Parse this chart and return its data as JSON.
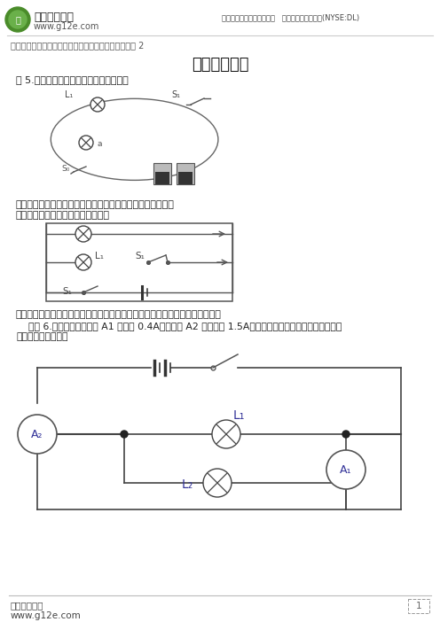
{
  "title": "经典例题精讲",
  "header_logo_text": "中小学教育网",
  "header_url": "www.g12e.com",
  "header_right": "正保远程教育旗下品牌网站   美国纽交所上市公司(NYSE:DL)",
  "subtitle": "初二强化提高班《物理》上学期辅导第三章第二节讲义 2",
  "example5_text": "例 5.实物图如图所示，画出它的电路图。",
  "analysis_text1": "「思路分析」首先是看懂电路图，可以用表电流法进行判断。",
  "analysis_text2": "「解答过程」画出的电路图如下示。",
  "skill_text1": "「技巧总结」关键是看懂电路，然后一一对应转化为电路图，注意画图要规范。",
  "example6_line1": "    例题 6.如图所示，电流表 A1 示数为 0.4A，电流表 A2 的示数为 1.5A，根据电路图，用笔画线作导线把右",
  "example6_line2": "边的实物连接起来。",
  "footer_text1": "中小学教育网",
  "footer_text2": "www.g12e.com",
  "bg_color": "#ffffff",
  "text_color": "#000000",
  "header_line_color": "#cccccc",
  "label_L1": "L₁",
  "label_L2": "L₂",
  "label_S1": "S₁",
  "label_Sa": "S₁",
  "label_A1": "A₁",
  "label_A2": "A₂"
}
